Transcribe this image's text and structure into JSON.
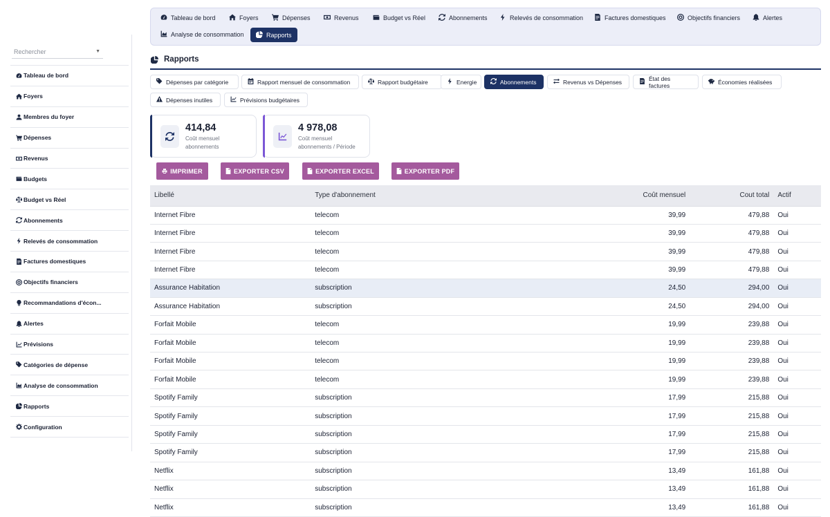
{
  "sidebar": {
    "search_placeholder": "Rechercher",
    "items": [
      {
        "label": "Tableau de bord",
        "icon": "dashboard-icon"
      },
      {
        "label": "Foyers",
        "icon": "home-icon"
      },
      {
        "label": "Membres du foyer",
        "icon": "user-icon"
      },
      {
        "label": "Dépenses",
        "icon": "cart-icon"
      },
      {
        "label": "Revenus",
        "icon": "money-icon"
      },
      {
        "label": "Budgets",
        "icon": "wallet-icon"
      },
      {
        "label": "Budget vs Réel",
        "icon": "balance-icon"
      },
      {
        "label": "Abonnements",
        "icon": "sync-icon"
      },
      {
        "label": "Relevés de consommation",
        "icon": "bolt-icon"
      },
      {
        "label": "Factures domestiques",
        "icon": "invoice-icon"
      },
      {
        "label": "Objectifs financiers",
        "icon": "target-icon"
      },
      {
        "label": "Recommandations d'écon...",
        "icon": "lightbulb-icon"
      },
      {
        "label": "Alertes",
        "icon": "bell-icon"
      },
      {
        "label": "Prévisions",
        "icon": "chart-line-icon"
      },
      {
        "label": "Catégories de dépense",
        "icon": "tags-icon"
      },
      {
        "label": "Analyse de consommation",
        "icon": "chart-area-icon"
      },
      {
        "label": "Rapports",
        "icon": "pie-icon"
      },
      {
        "label": "Configuration",
        "icon": "gear-icon"
      }
    ]
  },
  "topnav": [
    {
      "label": "Tableau de bord",
      "icon": "dashboard-icon"
    },
    {
      "label": "Foyers",
      "icon": "home-icon"
    },
    {
      "label": "Dépenses",
      "icon": "cart-icon"
    },
    {
      "label": "Revenus",
      "icon": "money-icon"
    },
    {
      "label": "Budget vs Réel",
      "icon": "wallet-icon"
    },
    {
      "label": "Abonnements",
      "icon": "sync-icon"
    },
    {
      "label": "Relevés de consommation",
      "icon": "bolt-icon"
    },
    {
      "label": "Factures domestiques",
      "icon": "invoice-icon"
    },
    {
      "label": "Objectifs financiers",
      "icon": "target-icon"
    },
    {
      "label": "Alertes",
      "icon": "bell-icon"
    },
    {
      "label": "Analyse de consommation",
      "icon": "chart-area-icon"
    },
    {
      "label": "Rapports",
      "icon": "pie-icon",
      "active": true
    }
  ],
  "page_title": "Rapports",
  "report_tabs": [
    {
      "label": "Dépenses par catégorie",
      "icon": "tags-icon"
    },
    {
      "label": "Rapport mensuel de consommation",
      "icon": "calendar-icon"
    },
    {
      "label": "Rapport budgétaire",
      "icon": "balance-icon"
    },
    {
      "label": "Energie",
      "icon": "bolt-icon"
    },
    {
      "label": "Abonnements",
      "icon": "sync-icon",
      "active": true
    },
    {
      "label": "Revenus vs Dépenses",
      "icon": "exchange-icon"
    },
    {
      "label": "État des factures",
      "icon": "invoice-icon"
    },
    {
      "label": "Économies réalisées",
      "icon": "piggy-bank-icon"
    },
    {
      "label": "Dépenses inutiles",
      "icon": "warning-icon"
    },
    {
      "label": "Prévisions budgétaires",
      "icon": "chart-line-icon"
    }
  ],
  "cards": [
    {
      "value": "414,84",
      "label1": "Coût mensuel",
      "label2": "abonnements",
      "accent": "#1d3265"
    },
    {
      "value": "4 978,08",
      "label1": "Coût mensuel",
      "label2": "abonnements / Période",
      "accent": "#7b57d6"
    }
  ],
  "buttons": [
    "IMPRIMER",
    "EXPORTER CSV",
    "EXPORTER EXCEL",
    "EXPORTER PDF"
  ],
  "table": {
    "headers": [
      "Libellé",
      "Type d'abonnement",
      "Coût mensuel",
      "Cout total",
      "Actif"
    ],
    "rows": [
      [
        "Internet Fibre",
        "telecom",
        "39,99",
        "479,88",
        "Oui"
      ],
      [
        "Internet Fibre",
        "telecom",
        "39,99",
        "479,88",
        "Oui"
      ],
      [
        "Internet Fibre",
        "telecom",
        "39,99",
        "479,88",
        "Oui"
      ],
      [
        "Internet Fibre",
        "telecom",
        "39,99",
        "479,88",
        "Oui"
      ],
      [
        "Assurance Habitation",
        "subscription",
        "24,50",
        "294,00",
        "Oui"
      ],
      [
        "Assurance Habitation",
        "subscription",
        "24,50",
        "294,00",
        "Oui"
      ],
      [
        "Forfait Mobile",
        "telecom",
        "19,99",
        "239,88",
        "Oui"
      ],
      [
        "Forfait Mobile",
        "telecom",
        "19,99",
        "239,88",
        "Oui"
      ],
      [
        "Forfait Mobile",
        "telecom",
        "19,99",
        "239,88",
        "Oui"
      ],
      [
        "Forfait Mobile",
        "telecom",
        "19,99",
        "239,88",
        "Oui"
      ],
      [
        "Spotify Family",
        "subscription",
        "17,99",
        "215,88",
        "Oui"
      ],
      [
        "Spotify Family",
        "subscription",
        "17,99",
        "215,88",
        "Oui"
      ],
      [
        "Spotify Family",
        "subscription",
        "17,99",
        "215,88",
        "Oui"
      ],
      [
        "Spotify Family",
        "subscription",
        "17,99",
        "215,88",
        "Oui"
      ],
      [
        "Netflix",
        "subscription",
        "13,49",
        "161,88",
        "Oui"
      ],
      [
        "Netflix",
        "subscription",
        "13,49",
        "161,88",
        "Oui"
      ],
      [
        "Netflix",
        "subscription",
        "13,49",
        "161,88",
        "Oui"
      ]
    ],
    "highlighted_row": 4
  }
}
